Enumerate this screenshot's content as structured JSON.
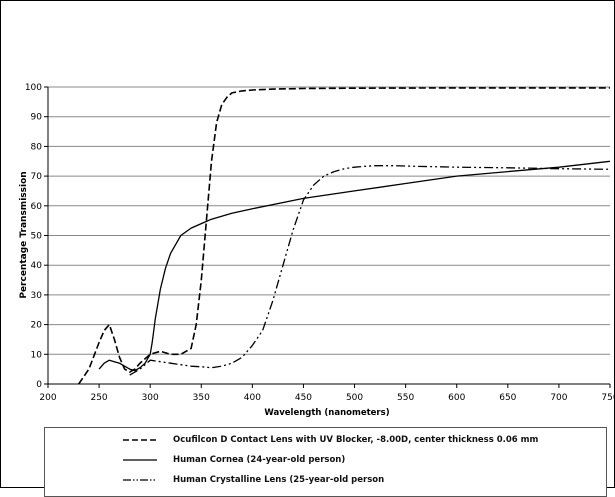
{
  "chart_data": {
    "type": "line",
    "title": "",
    "xlabel": "Wavelength (nanometers)",
    "ylabel": "Percentage Transmission",
    "xlim": [
      200,
      750
    ],
    "ylim": [
      0,
      100
    ],
    "xticks": [
      "200",
      "250",
      "300",
      "350",
      "400",
      "450",
      "500",
      "550",
      "600",
      "650",
      "700",
      "750"
    ],
    "yticks": [
      "0",
      "10",
      "20",
      "30",
      "40",
      "50",
      "60",
      "70",
      "80",
      "90",
      "100"
    ],
    "grid": "horizontal",
    "legend_position": "bottom",
    "series": [
      {
        "name": "Ocufilcon D Contact Lens with UV Blocker, -8.00D, center thickness 0.06 mm",
        "dash": "dashed",
        "x": [
          230,
          240,
          250,
          255,
          260,
          265,
          270,
          275,
          280,
          285,
          290,
          300,
          310,
          320,
          330,
          340,
          345,
          350,
          355,
          360,
          365,
          370,
          375,
          380,
          390,
          400,
          420,
          450,
          500,
          600,
          700,
          750
        ],
        "y": [
          0,
          5,
          14,
          18,
          20,
          15,
          9,
          5,
          4,
          5,
          7,
          10,
          11,
          10,
          10,
          12,
          20,
          35,
          55,
          75,
          88,
          94,
          96.5,
          98,
          98.7,
          99,
          99.3,
          99.5,
          99.6,
          99.7,
          99.7,
          99.7
        ]
      },
      {
        "name": "Human Cornea (24-year-old person)",
        "dash": "solid",
        "x": [
          250,
          255,
          260,
          265,
          270,
          275,
          280,
          285,
          290,
          295,
          300,
          302,
          305,
          310,
          315,
          320,
          325,
          330,
          340,
          350,
          360,
          380,
          400,
          450,
          500,
          550,
          600,
          650,
          700,
          750
        ],
        "y": [
          5,
          7,
          8,
          7.5,
          7,
          6,
          5,
          4.5,
          5.5,
          7,
          10,
          14,
          22,
          32,
          39,
          44,
          47,
          50,
          52.5,
          54,
          55.5,
          57.5,
          59,
          62.5,
          65,
          67.5,
          70,
          71.5,
          73,
          75
        ]
      },
      {
        "name": "Human Crystalline Lens (25-year-old person",
        "dash": "dashdotdot",
        "x": [
          280,
          290,
          300,
          310,
          320,
          330,
          340,
          350,
          360,
          370,
          380,
          390,
          400,
          410,
          420,
          430,
          440,
          450,
          460,
          470,
          480,
          490,
          500,
          510,
          520,
          540,
          560,
          600,
          650,
          700,
          750
        ],
        "y": [
          3,
          5,
          8,
          7.5,
          7,
          6.5,
          6,
          5.8,
          5.5,
          6,
          7,
          9,
          13,
          18,
          28,
          40,
          52,
          62,
          67,
          70,
          71.5,
          72.5,
          73,
          73.3,
          73.5,
          73.5,
          73.3,
          73,
          72.8,
          72.5,
          72.3
        ]
      }
    ]
  }
}
